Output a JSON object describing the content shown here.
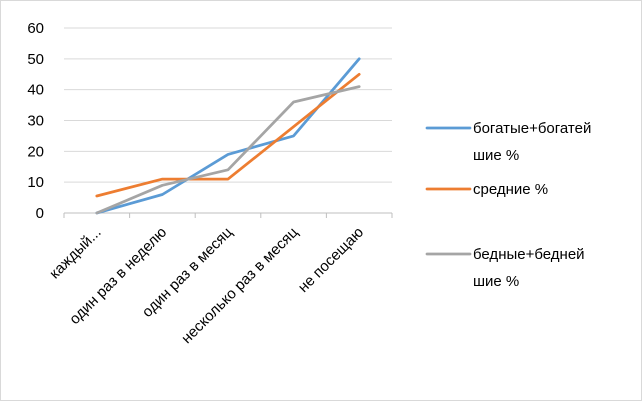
{
  "chart_data": {
    "type": "line",
    "title": "",
    "xlabel": "",
    "ylabel": "",
    "ylim": [
      0,
      60
    ],
    "yticks": [
      0,
      10,
      20,
      30,
      40,
      50,
      60
    ],
    "grid": true,
    "legend_position": "right",
    "categories": [
      "каждый...",
      "один раз в неделю",
      "один раз в месяц",
      "несколько раз в месяц",
      "не посещаю"
    ],
    "series": [
      {
        "name": "богатые+богатейшие %",
        "name_lines": [
          "богатые+богатей",
          "шие %"
        ],
        "color": "#5b9bd5",
        "values": [
          0,
          6,
          19,
          25,
          50
        ]
      },
      {
        "name": "средние %",
        "name_lines": [
          "средние %"
        ],
        "color": "#ed7d31",
        "values": [
          5.5,
          11,
          11,
          28,
          45
        ]
      },
      {
        "name": "бедные+беднейшие %",
        "name_lines": [
          "бедные+бедней",
          "шие %"
        ],
        "color": "#a5a5a5",
        "values": [
          0,
          9,
          14,
          36,
          41
        ]
      }
    ]
  }
}
